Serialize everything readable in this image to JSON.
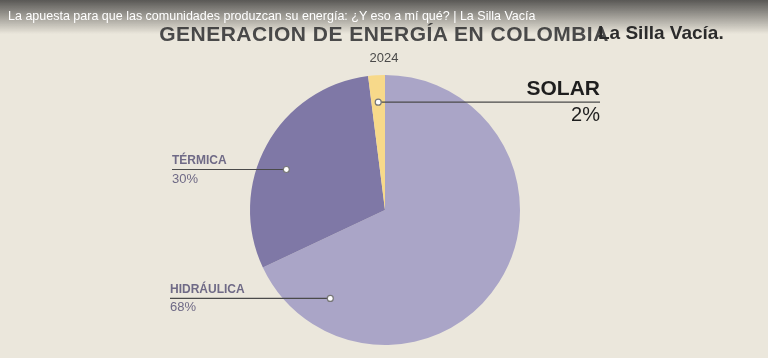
{
  "video": {
    "title": "La apuesta para que las comunidades produzcan su energía: ¿Y eso a mí qué? | La Silla Vacía",
    "channel": "La Silla Vacía."
  },
  "chart_data": {
    "type": "pie",
    "title": "GENERACION DE ENERGÍA EN COLOMBIA",
    "subtitle": "2024",
    "categories": [
      "HIDRÁULICA",
      "TÉRMICA",
      "SOLAR"
    ],
    "values": [
      68,
      30,
      2
    ],
    "value_labels": [
      "68%",
      "30%",
      "2%"
    ],
    "colors": [
      "#aaa5c7",
      "#7f78a6",
      "#f7d98a"
    ],
    "data_labels": true
  }
}
